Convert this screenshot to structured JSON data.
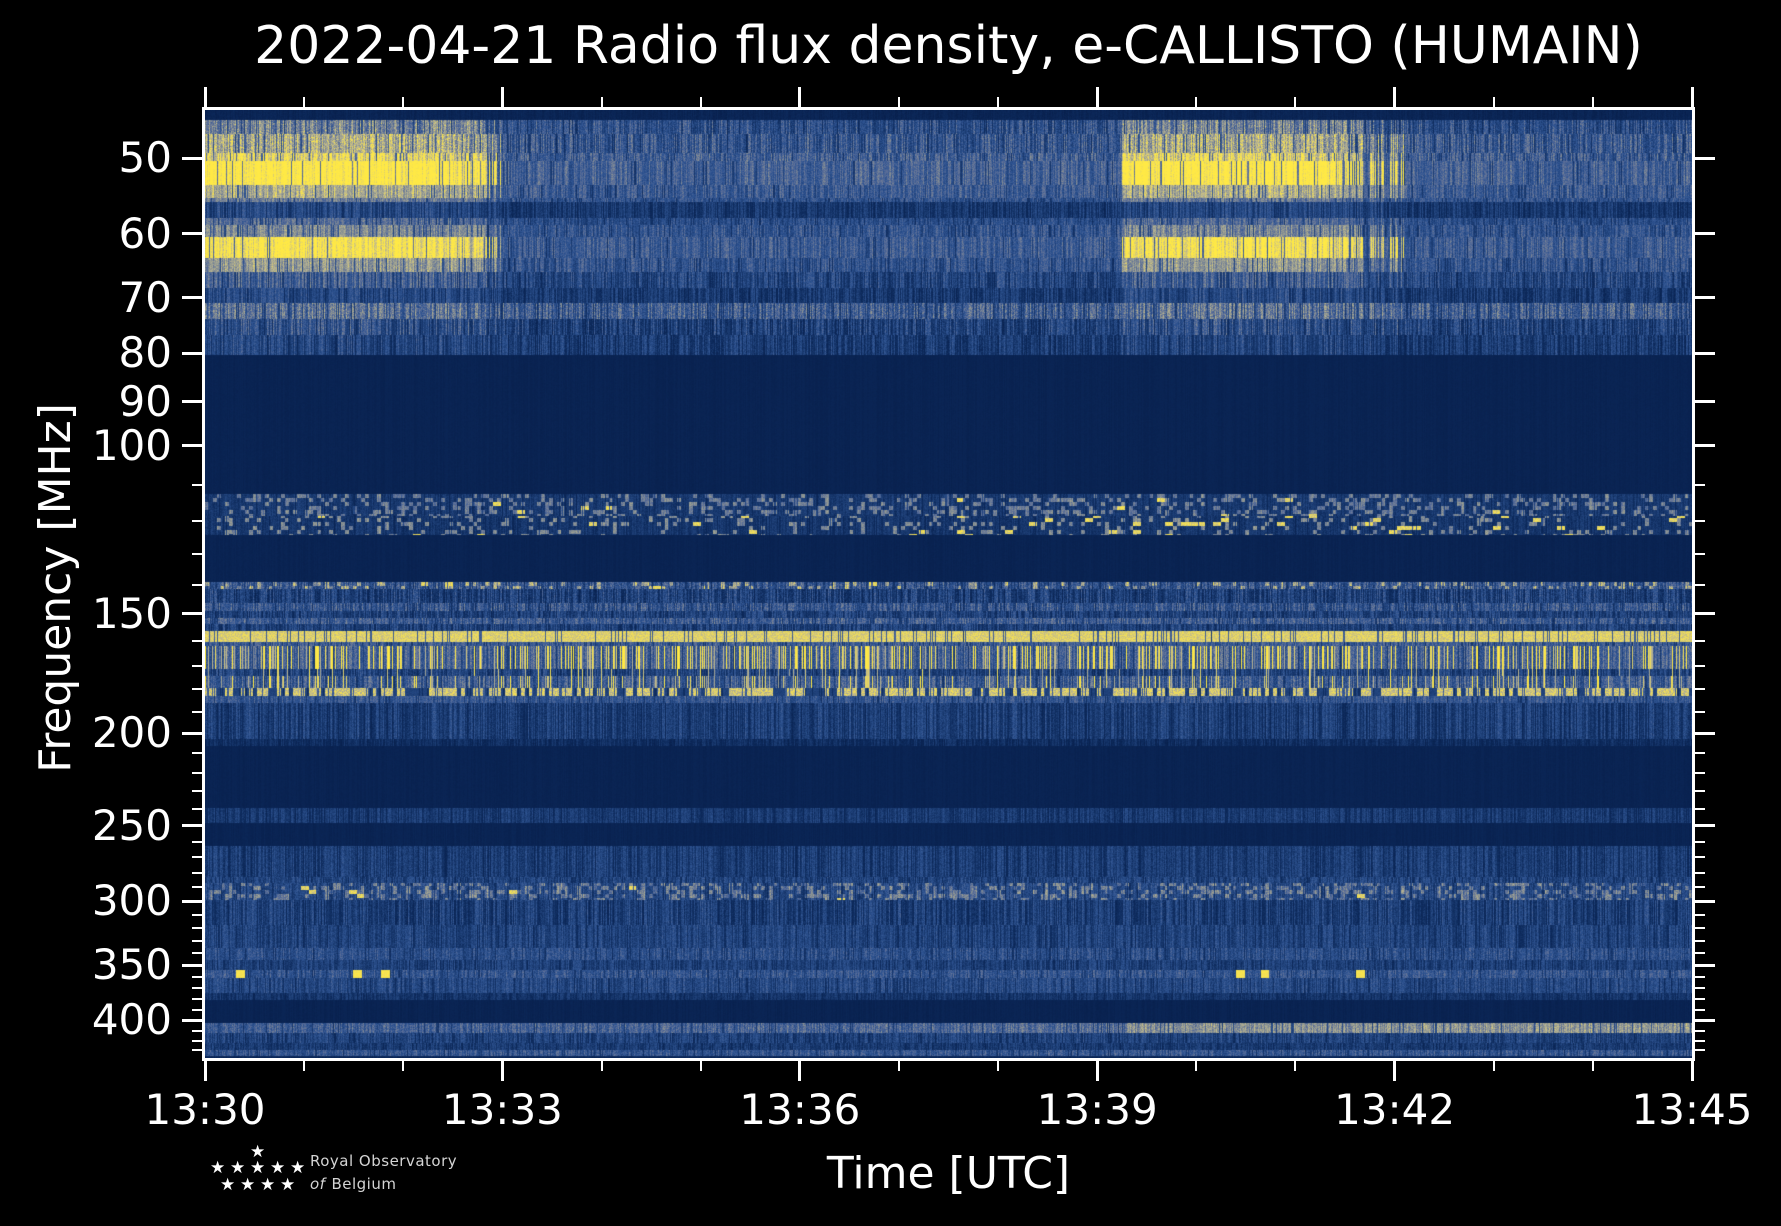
{
  "title": "2022-04-21 Radio flux density, e-CALLISTO (HUMAIN)",
  "logo": {
    "line1": "Royal Observatory",
    "line2_word": "of",
    "line2_rest": "Belgium"
  },
  "chart_data": {
    "type": "heatmap",
    "title": "2022-04-21 Radio flux density, e-CALLISTO (HUMAIN)",
    "xlabel": "Time [UTC]",
    "ylabel": "Frequency [MHz]",
    "x_ticks": [
      "13:30",
      "13:33",
      "13:36",
      "13:39",
      "13:42",
      "13:45"
    ],
    "x_major_minutes": [
      0,
      3,
      6,
      9,
      12,
      15
    ],
    "x_minor_every_min": 1,
    "x_range_minutes": [
      0,
      15
    ],
    "y_scale": "log",
    "y_axis_inverted_low_freq_on_top": true,
    "y_range_mhz": [
      44.5,
      438
    ],
    "y_ticks": [
      50,
      60,
      70,
      80,
      90,
      100,
      150,
      200,
      250,
      300,
      350,
      400
    ],
    "y_minor_ticks": [
      110,
      120,
      130,
      140,
      160,
      170,
      180,
      190,
      210,
      220,
      230,
      240,
      260,
      270,
      280,
      290,
      310,
      320,
      330,
      340,
      360,
      370,
      380,
      390,
      410,
      420,
      430
    ],
    "legend": "none",
    "grid": false,
    "colormap_stops": [
      {
        "v": 0.0,
        "rgb": [
          7,
          30,
          74
        ]
      },
      {
        "v": 0.12,
        "rgb": [
          13,
          42,
          92
        ]
      },
      {
        "v": 0.25,
        "rgb": [
          28,
          61,
          116
        ]
      },
      {
        "v": 0.4,
        "rgb": [
          47,
          84,
          146
        ]
      },
      {
        "v": 0.55,
        "rgb": [
          94,
          112,
          152
        ]
      },
      {
        "v": 0.68,
        "rgb": [
          144,
          151,
          146
        ]
      },
      {
        "v": 0.8,
        "rgb": [
          186,
          181,
          146
        ]
      },
      {
        "v": 0.91,
        "rgb": [
          235,
          218,
          95
        ]
      },
      {
        "v": 1.0,
        "rgb": [
          255,
          233,
          69
        ]
      }
    ],
    "bright_intervals_utc": [
      "13:30:00-13:32:47",
      "13:39:15-13:41:30"
    ],
    "burst_windows_min": [
      {
        "start": 0.0,
        "end": 2.79,
        "fade": 0.2
      },
      {
        "start": 9.25,
        "end": 11.5,
        "fade": 0.65
      }
    ],
    "yellow_dot_times_min_357mhz": [
      0.35,
      1.53,
      1.82,
      10.44,
      10.69,
      11.65
    ],
    "bands": [
      {
        "f": [
          44.5,
          45.6
        ],
        "b": 0.07,
        "a": 0.03,
        "c": 0.03,
        "d": 0.0
      },
      {
        "f": [
          45.6,
          47.1
        ],
        "b": 0.38,
        "a": 0.1,
        "c": 0.16,
        "d": 0.12,
        "burst": {
          "boost": 0.22,
          "fleck": 0.5
        }
      },
      {
        "f": [
          47.1,
          49.4
        ],
        "b": 0.42,
        "a": 0.1,
        "c": 0.16,
        "d": 0.1,
        "burst": {
          "boost": 0.3,
          "fleck": 0.6
        }
      },
      {
        "f": [
          49.4,
          50.3
        ],
        "b": 0.45,
        "a": 0.09,
        "c": 0.14,
        "d": 0.08,
        "burst": {
          "boost": 0.42,
          "fleck": 0.3
        }
      },
      {
        "f": [
          50.3,
          53.3
        ],
        "b": 0.47,
        "a": 0.08,
        "c": 0.12,
        "d": 0.06,
        "burst": {
          "boost": 0.55
        }
      },
      {
        "f": [
          53.3,
          55.0
        ],
        "b": 0.43,
        "a": 0.08,
        "c": 0.12,
        "d": 0.08,
        "burst": {
          "boost": 0.32,
          "fleck": 0.3
        }
      },
      {
        "f": [
          55.0,
          55.5
        ],
        "b": 0.4,
        "a": 0.08,
        "c": 0.1,
        "d": 0.1,
        "burst": {
          "boost": 0.18
        }
      },
      {
        "f": [
          55.5,
          57.7
        ],
        "b": 0.24,
        "a": 0.07,
        "c": 0.1,
        "d": 0.25,
        "burst": {
          "boost": 0.1
        }
      },
      {
        "f": [
          57.7,
          58.7
        ],
        "b": 0.36,
        "a": 0.08,
        "c": 0.1,
        "d": 0.12,
        "burst": {
          "boost": 0.15
        }
      },
      {
        "f": [
          58.7,
          60.4
        ],
        "b": 0.4,
        "a": 0.08,
        "c": 0.12,
        "d": 0.1,
        "burst": {
          "boost": 0.22,
          "fleck": 0.25
        }
      },
      {
        "f": [
          60.4,
          63.6
        ],
        "b": 0.44,
        "a": 0.08,
        "c": 0.12,
        "d": 0.06,
        "burst": {
          "boost": 0.52
        }
      },
      {
        "f": [
          63.6,
          65.8
        ],
        "b": 0.4,
        "a": 0.08,
        "c": 0.12,
        "d": 0.1,
        "burst": {
          "boost": 0.28,
          "fleck": 0.25
        }
      },
      {
        "f": [
          65.8,
          68.4
        ],
        "b": 0.32,
        "a": 0.08,
        "c": 0.14,
        "d": 0.16,
        "burst": {
          "boost": 0.15
        }
      },
      {
        "f": [
          68.4,
          70.8
        ],
        "b": 0.24,
        "a": 0.07,
        "c": 0.12,
        "d": 0.2,
        "burst": {
          "boost": 0.1
        }
      },
      {
        "f": [
          70.8,
          73.6
        ],
        "b": 0.46,
        "a": 0.12,
        "c": 0.15,
        "d": 0.12,
        "burst": {
          "boost": 0.1
        }
      },
      {
        "f": [
          73.6,
          76.6
        ],
        "b": 0.3,
        "a": 0.09,
        "c": 0.16,
        "d": 0.22,
        "burst": {
          "boost": 0.1
        }
      },
      {
        "f": [
          76.6,
          80.3
        ],
        "b": 0.26,
        "a": 0.08,
        "c": 0.13,
        "d": 0.2,
        "burst": {
          "boost": 0.07
        }
      },
      {
        "f": [
          80.3,
          112.5
        ],
        "b": 0.055,
        "a": 0.015,
        "c": 0.015,
        "d": 0.0
      },
      {
        "f": [
          112.5,
          118.5
        ],
        "b": 0.22,
        "a": 0.06,
        "c": 0.06,
        "d": 0.06,
        "speckle": {
          "p": 0.3,
          "add": 0.3,
          "yellow": 0.012
        }
      },
      {
        "f": [
          118.5,
          124.0
        ],
        "b": 0.2,
        "a": 0.06,
        "c": 0.06,
        "d": 0.06,
        "speckle": {
          "p": 0.17,
          "add": 0.33,
          "yellow": 0.02,
          "bigRight": true
        }
      },
      {
        "f": [
          124.0,
          139.0
        ],
        "b": 0.055,
        "a": 0.015,
        "c": 0.015,
        "d": 0.0
      },
      {
        "f": [
          139.0,
          141.3
        ],
        "b": 0.4,
        "a": 0.12,
        "c": 0.14,
        "d": 0.1,
        "speckle": {
          "p": 0.22,
          "add": 0.25,
          "yellow": 0.02
        }
      },
      {
        "f": [
          141.3,
          146.0
        ],
        "b": 0.29,
        "a": 0.1,
        "c": 0.15,
        "d": 0.2
      },
      {
        "f": [
          146.0,
          149.0
        ],
        "b": 0.41,
        "a": 0.1,
        "c": 0.15,
        "d": 0.12
      },
      {
        "f": [
          149.0,
          151.5
        ],
        "b": 0.3,
        "a": 0.08,
        "c": 0.12,
        "d": 0.2
      },
      {
        "f": [
          151.5,
          153.8
        ],
        "b": 0.45,
        "a": 0.1,
        "c": 0.12,
        "d": 0.1
      },
      {
        "f": [
          153.8,
          156.5
        ],
        "b": 0.3,
        "a": 0.08,
        "c": 0.12,
        "d": 0.25
      },
      {
        "f": [
          156.5,
          160.5
        ],
        "b": 0.9,
        "a": 0.07,
        "c": 0.06,
        "d": 0.06,
        "line": true
      },
      {
        "f": [
          160.5,
          162.0
        ],
        "b": 0.44,
        "a": 0.08,
        "c": 0.1,
        "d": 0.12
      },
      {
        "f": [
          162.0,
          171.5
        ],
        "b": 0.47,
        "a": 0.1,
        "c": 0.12,
        "d": 0.1,
        "streak": {
          "p": 0.3,
          "val": 0.42
        }
      },
      {
        "f": [
          171.5,
          174.5
        ],
        "b": 0.3,
        "a": 0.08,
        "c": 0.12,
        "d": 0.18,
        "streak": {
          "p": 0.1,
          "val": 0.28
        }
      },
      {
        "f": [
          174.5,
          179.5
        ],
        "b": 0.44,
        "a": 0.1,
        "c": 0.14,
        "d": 0.1,
        "streak": {
          "p": 0.17,
          "val": 0.32
        }
      },
      {
        "f": [
          179.5,
          183.0
        ],
        "b": 0.78,
        "a": 0.14,
        "c": 0.1,
        "d": 0.18,
        "dash": true
      },
      {
        "f": [
          183.0,
          186.0
        ],
        "b": 0.41,
        "a": 0.08,
        "c": 0.1,
        "d": 0.1
      },
      {
        "f": [
          186.0,
          203.0
        ],
        "b": 0.28,
        "a": 0.08,
        "c": 0.12,
        "d": 0.22
      },
      {
        "f": [
          203.0,
          206.5
        ],
        "b": 0.15,
        "a": 0.05,
        "c": 0.08,
        "d": 0.15
      },
      {
        "f": [
          206.5,
          239.5
        ],
        "b": 0.055,
        "a": 0.015,
        "c": 0.015,
        "d": 0.0
      },
      {
        "f": [
          239.5,
          248.5
        ],
        "b": 0.24,
        "a": 0.07,
        "c": 0.09,
        "d": 0.15
      },
      {
        "f": [
          248.5,
          262.5
        ],
        "b": 0.06,
        "a": 0.015,
        "c": 0.02,
        "d": 0.0
      },
      {
        "f": [
          262.5,
          283.0
        ],
        "b": 0.27,
        "a": 0.08,
        "c": 0.1,
        "d": 0.18
      },
      {
        "f": [
          283.0,
          287.0
        ],
        "b": 0.3,
        "a": 0.08,
        "c": 0.1,
        "d": 0.15
      },
      {
        "f": [
          287.0,
          299.5
        ],
        "b": 0.32,
        "a": 0.09,
        "c": 0.1,
        "d": 0.12,
        "speckle": {
          "p": 0.35,
          "add": 0.22,
          "yellow": 0.004
        }
      },
      {
        "f": [
          299.5,
          318.0
        ],
        "b": 0.28,
        "a": 0.08,
        "c": 0.13,
        "d": 0.25
      },
      {
        "f": [
          318.0,
          336.0
        ],
        "b": 0.3,
        "a": 0.08,
        "c": 0.1,
        "d": 0.15
      },
      {
        "f": [
          336.0,
          346.0
        ],
        "b": 0.37,
        "a": 0.09,
        "c": 0.1,
        "d": 0.12
      },
      {
        "f": [
          346.0,
          354.5
        ],
        "b": 0.28,
        "a": 0.07,
        "c": 0.1,
        "d": 0.15
      },
      {
        "f": [
          354.5,
          361.5
        ],
        "b": 0.41,
        "a": 0.09,
        "c": 0.1,
        "d": 0.1,
        "dots": true
      },
      {
        "f": [
          361.5,
          374.5
        ],
        "b": 0.33,
        "a": 0.08,
        "c": 0.1,
        "d": 0.12
      },
      {
        "f": [
          374.5,
          381.0
        ],
        "b": 0.2,
        "a": 0.06,
        "c": 0.08,
        "d": 0.1
      },
      {
        "f": [
          381.0,
          402.5
        ],
        "b": 0.055,
        "a": 0.015,
        "c": 0.02,
        "d": 0.0
      },
      {
        "f": [
          402.5,
          412.0
        ],
        "b": 0.45,
        "a": 0.1,
        "c": 0.1,
        "d": 0.08,
        "ramp": true
      },
      {
        "f": [
          412.0,
          422.5
        ],
        "b": 0.3,
        "a": 0.08,
        "c": 0.1,
        "d": 0.15
      },
      {
        "f": [
          422.5,
          429.5
        ],
        "b": 0.24,
        "a": 0.07,
        "c": 0.08,
        "d": 0.12
      },
      {
        "f": [
          429.5,
          435.5
        ],
        "b": 0.41,
        "a": 0.1,
        "c": 0.1,
        "d": 0.1
      },
      {
        "f": [
          435.5,
          438.0
        ],
        "b": 0.1,
        "a": 0.03,
        "c": 0.03,
        "d": 0.0
      }
    ]
  }
}
